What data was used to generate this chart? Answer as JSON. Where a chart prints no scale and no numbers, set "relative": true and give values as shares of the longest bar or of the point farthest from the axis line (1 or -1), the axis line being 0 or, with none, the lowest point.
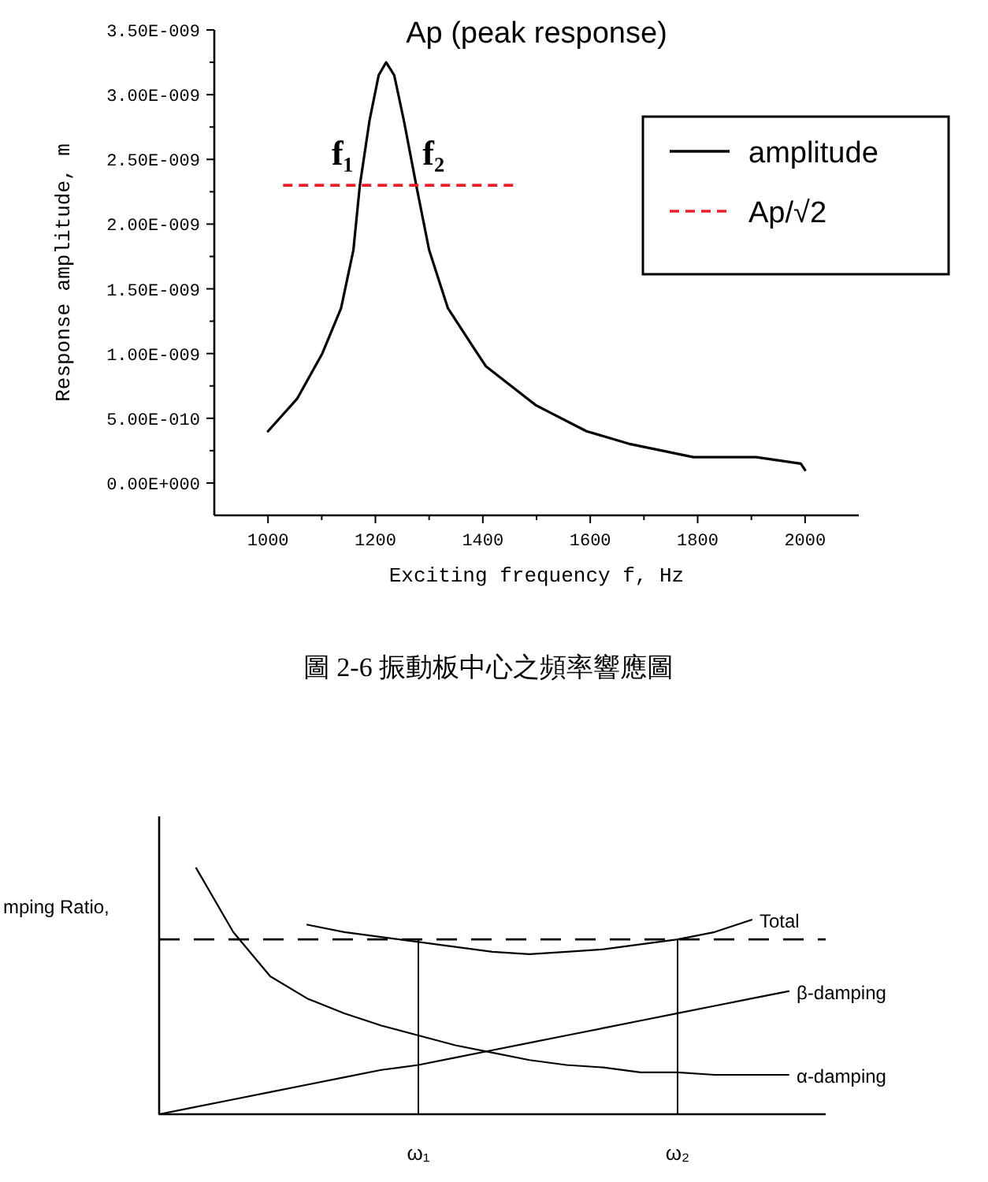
{
  "chart_data": [
    {
      "type": "line",
      "title": "Ap (peak response)",
      "xlabel": "Exciting frequency f, Hz",
      "ylabel": "Response amplitude, m",
      "xlim": [
        900,
        2100
      ],
      "xticks": [
        1000,
        1200,
        1400,
        1600,
        1800,
        2000
      ],
      "ylim": [
        -2.5e-10,
        3.5e-09
      ],
      "yticks": [
        {
          "value": 0,
          "label": "0.00E+000"
        },
        {
          "value": 5e-10,
          "label": "5.00E-010"
        },
        {
          "value": 1e-09,
          "label": "1.00E-009"
        },
        {
          "value": 1.5e-09,
          "label": "1.50E-009"
        },
        {
          "value": 2e-09,
          "label": "2.00E-009"
        },
        {
          "value": 2.5e-09,
          "label": "2.50E-009"
        },
        {
          "value": 3e-09,
          "label": "3.00E-009"
        },
        {
          "value": 3.5e-09,
          "label": "3.50E-009"
        }
      ],
      "series": [
        {
          "name": "amplitude",
          "color": "#000000",
          "x": [
            1000,
            1054,
            1101,
            1136,
            1159,
            1171,
            1189,
            1206,
            1220,
            1235,
            1253,
            1276,
            1300,
            1335,
            1382,
            1406,
            1499,
            1593,
            1675,
            1792,
            1909,
            1992,
            2000
          ],
          "values": [
            4e-10,
            6.5e-10,
            1e-09,
            1.35e-09,
            1.8e-09,
            2.3e-09,
            2.8e-09,
            3.15e-09,
            3.25e-09,
            3.15e-09,
            2.8e-09,
            2.3e-09,
            1.8e-09,
            1.35e-09,
            1.05e-09,
            9e-10,
            6e-10,
            4e-10,
            3e-10,
            2e-10,
            2e-10,
            1.5e-10,
            1e-10
          ]
        },
        {
          "name": "Ap/√2",
          "color": "#e8212a",
          "line_style": "dashed",
          "x": [
            1028,
            1464
          ],
          "values": [
            2.3e-09,
            2.3e-09
          ]
        }
      ],
      "annotations": [
        {
          "text": "f₁",
          "x": 1171,
          "y": 2.3e-09
        },
        {
          "text": "f₂",
          "x": 1276,
          "y": 2.3e-09
        },
        "圖 2-6 振動板中心之頻率響應圖"
      ],
      "legend": "top right"
    },
    {
      "type": "line",
      "relative": true,
      "ylabel": "mping Ratio,",
      "categories": [
        null,
        null,
        null,
        null,
        null,
        null,
        null,
        "ω₁",
        null,
        null,
        null,
        null,
        null,
        null,
        "ω₂",
        null,
        null,
        null,
        null
      ],
      "tick_labels": "x",
      "series": [
        {
          "name": "Total",
          "color": "#000000",
          "values": [
            null,
            null,
            null,
            null,
            0.77,
            0.74,
            0.72,
            0.7,
            0.68,
            0.66,
            0.65,
            0.66,
            0.67,
            0.69,
            0.71,
            0.74,
            0.79,
            null,
            null
          ]
        },
        {
          "name": "β-damping",
          "color": "#000000",
          "values": [
            0,
            0.03,
            0.06,
            0.09,
            0.12,
            0.15,
            0.18,
            0.2,
            0.23,
            0.26,
            0.29,
            0.32,
            0.35,
            0.38,
            0.41,
            0.44,
            0.47,
            0.5,
            null
          ]
        },
        {
          "name": "α-damping",
          "color": "#000000",
          "values": [
            null,
            1,
            0.74,
            0.56,
            0.47,
            0.41,
            0.36,
            0.32,
            0.28,
            0.25,
            0.22,
            0.2,
            0.19,
            0.17,
            0.17,
            0.16,
            0.16,
            0.16,
            null
          ]
        }
      ],
      "ref_lines": [
        {
          "axis": "y",
          "value": 0.71,
          "line_style": "dashed",
          "color": "#000000"
        },
        {
          "axis": "x",
          "value": "ω₁",
          "color": "#000000"
        },
        {
          "axis": "x",
          "value": "ω₂",
          "color": "#000000"
        }
      ]
    }
  ]
}
